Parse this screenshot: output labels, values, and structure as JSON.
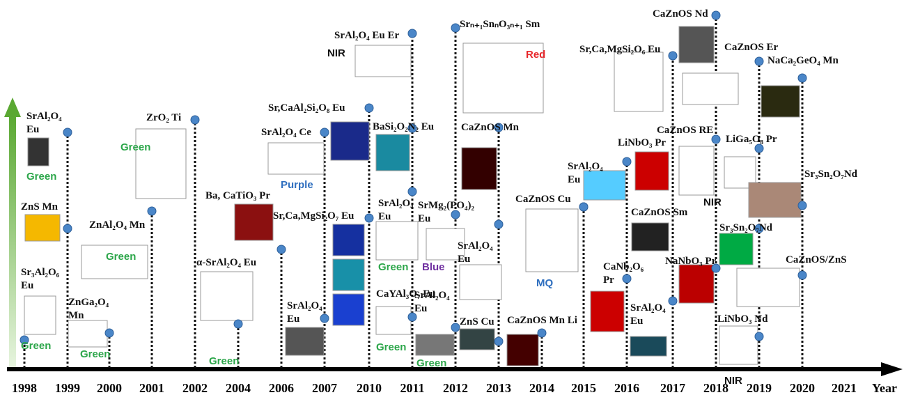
{
  "axis_label": "Year",
  "timeline": [
    {
      "year": "1998",
      "entries": [
        {
          "label": "Sr₃Al₂O₆ Eu",
          "note": {
            "text": "Green",
            "color": "#2ca64a"
          }
        }
      ]
    },
    {
      "year": "1999",
      "entries": [
        {
          "label": "SrAl₂O₄ Eu",
          "note": {
            "text": "Green",
            "color": "#2ca64a"
          }
        },
        {
          "label": "ZnS Mn"
        }
      ]
    },
    {
      "year": "2000",
      "entries": [
        {
          "label": "ZnGa₂O₄ Mn",
          "note": {
            "text": "Green",
            "color": "#2ca64a"
          }
        }
      ]
    },
    {
      "year": "2001",
      "entries": [
        {
          "label": "ZnAl₂O₄ Mn",
          "note": {
            "text": "Green",
            "color": "#2ca64a"
          }
        }
      ]
    },
    {
      "year": "2002",
      "entries": [
        {
          "label": "ZrO₂ Ti",
          "note": {
            "text": "Green",
            "color": "#2ca64a"
          }
        }
      ]
    },
    {
      "year": "2004",
      "entries": [
        {
          "label": "α-SrAl₂O₄ Eu",
          "note": {
            "text": "Green",
            "color": "#2ca64a"
          }
        }
      ]
    },
    {
      "year": "2006",
      "entries": [
        {
          "label": "Ba, CaTiO₃ Pr"
        }
      ]
    },
    {
      "year": "2007",
      "entries": [
        {
          "label": "SrAl₂O₄ Ce",
          "note": {
            "text": "Purple",
            "color": "#2f6fbf"
          }
        },
        {
          "label": "SrAl₂O₄ Eu"
        }
      ]
    },
    {
      "year": "2010",
      "entries": [
        {
          "label": "Sr,CaAl₂Si₂O₈ Eu"
        },
        {
          "label": "Sr,Ca,MgSi₂O₇ Eu"
        }
      ]
    },
    {
      "year": "2011",
      "entries": [
        {
          "label": "SrAl₂O₄ Eu Er",
          "note": {
            "text": "NIR",
            "color": "#111111"
          }
        },
        {
          "label": "BaSi₂O₂N₂ Eu"
        },
        {
          "label": "SrAl₂O₄ Eu",
          "note": {
            "text": "Green",
            "color": "#2ca64a"
          }
        },
        {
          "label": "CaYAl₃O₇ Eu",
          "note": {
            "text": "Green",
            "color": "#2ca64a"
          }
        }
      ]
    },
    {
      "year": "2012",
      "entries": [
        {
          "label": "Srₙ₊₁SnₙO₃ₙ₊₁ Sm",
          "note": {
            "text": "Red",
            "color": "#e8262a"
          }
        },
        {
          "label": "SrMg₂(PO₄)₂ Eu",
          "note": {
            "text": "Blue",
            "color": "#7030a0"
          }
        },
        {
          "label": "SrAl₂O₄ Eu",
          "note": {
            "text": "Green",
            "color": "#2ca64a"
          }
        }
      ]
    },
    {
      "year": "2013",
      "entries": [
        {
          "label": "CaZnOS Mn"
        },
        {
          "label": "SrAl₂O₄ Eu"
        },
        {
          "label": "ZnS Cu"
        }
      ]
    },
    {
      "year": "2014",
      "entries": [
        {
          "label": "CaZnOS Mn Li"
        }
      ]
    },
    {
      "year": "2015",
      "entries": [
        {
          "label": "SrAl₂O₄ Eu"
        },
        {
          "label": "CaZnOS Cu",
          "note": {
            "text": "MQ",
            "color": "#2f6fbf"
          }
        }
      ]
    },
    {
      "year": "2016",
      "entries": [
        {
          "label": "LiNbO₃ Pr"
        },
        {
          "label": "CaNb₂O₆ Pr"
        }
      ]
    },
    {
      "year": "2017",
      "entries": [
        {
          "label": "Sr,Ca,MgSi₂O₆ Eu"
        },
        {
          "label": "CaZnOS Sm"
        },
        {
          "label": "SrAl₂O₄ Eu"
        }
      ]
    },
    {
      "year": "2018",
      "entries": [
        {
          "label": "CaZnOS Nd"
        },
        {
          "label": "CaZnOS RE",
          "note": {
            "text": "NIR",
            "color": "#111111"
          }
        },
        {
          "label": "NaNbO₃ Pr"
        }
      ]
    },
    {
      "year": "2019",
      "entries": [
        {
          "label": "CaZnOS Er"
        },
        {
          "label": "LiGa₅O₈ Pr"
        },
        {
          "label": "Sr₃Sn₂O₇Nd"
        },
        {
          "label": "LiNbO₃ Nd",
          "note": {
            "text": "NIR",
            "color": "#111111"
          }
        }
      ]
    },
    {
      "year": "2020",
      "entries": [
        {
          "label": "NaCa₂GeO₄ Mn"
        },
        {
          "label": "Sr₃Sn₂O₇Nd"
        },
        {
          "label": "CaZnOS/ZnS"
        }
      ]
    },
    {
      "year": "2021",
      "entries": []
    }
  ]
}
